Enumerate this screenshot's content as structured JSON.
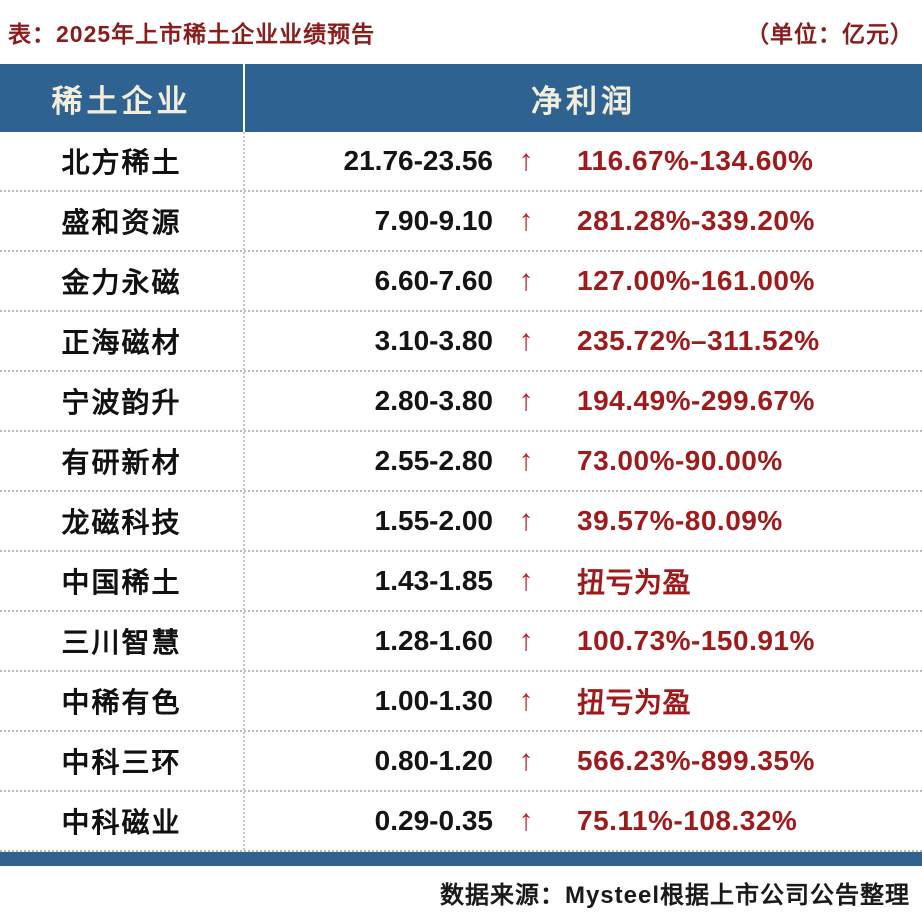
{
  "title": "表：2025年上市稀土企业业绩预告",
  "unit": "（单位：亿元）",
  "footer": "数据来源：Mysteel根据上市公司公告整理",
  "colors": {
    "header_bg": "#2e6290",
    "header_text": "#f3eddb",
    "title_red": "#8a1c1c",
    "arrow_red": "#c42121",
    "pct_red": "#9e1b1b"
  },
  "chart_data": {
    "type": "table",
    "title": "表：2025年上市稀土企业业绩预告",
    "unit": "亿元",
    "columns": [
      "稀土企业",
      "净利润"
    ],
    "col1_header": "稀土企业",
    "col2_header": "净利润",
    "rows": [
      {
        "company": "北方稀土",
        "range": "21.76-23.56",
        "arrow": "↑",
        "pct": "116.67%-134.60%"
      },
      {
        "company": "盛和资源",
        "range": "7.90-9.10",
        "arrow": "↑",
        "pct": "281.28%-339.20%"
      },
      {
        "company": "金力永磁",
        "range": "6.60-7.60",
        "arrow": "↑",
        "pct": "127.00%-161.00%"
      },
      {
        "company": "正海磁材",
        "range": "3.10-3.80",
        "arrow": "↑",
        "pct": "235.72%–311.52%"
      },
      {
        "company": "宁波韵升",
        "range": "2.80-3.80",
        "arrow": "↑",
        "pct": "194.49%-299.67%"
      },
      {
        "company": "有研新材",
        "range": "2.55-2.80",
        "arrow": "↑",
        "pct": "73.00%-90.00%"
      },
      {
        "company": "龙磁科技",
        "range": "1.55-2.00",
        "arrow": "↑",
        "pct": "39.57%-80.09%"
      },
      {
        "company": "中国稀土",
        "range": "1.43-1.85",
        "arrow": "↑",
        "pct": "扭亏为盈"
      },
      {
        "company": "三川智慧",
        "range": "1.28-1.60",
        "arrow": "↑",
        "pct": "100.73%-150.91%"
      },
      {
        "company": "中稀有色",
        "range": "1.00-1.30",
        "arrow": "↑",
        "pct": "扭亏为盈"
      },
      {
        "company": "中科三环",
        "range": "0.80-1.20",
        "arrow": "↑",
        "pct": "566.23%-899.35%"
      },
      {
        "company": "中科磁业",
        "range": "0.29-0.35",
        "arrow": "↑",
        "pct": "75.11%-108.32%"
      }
    ]
  }
}
